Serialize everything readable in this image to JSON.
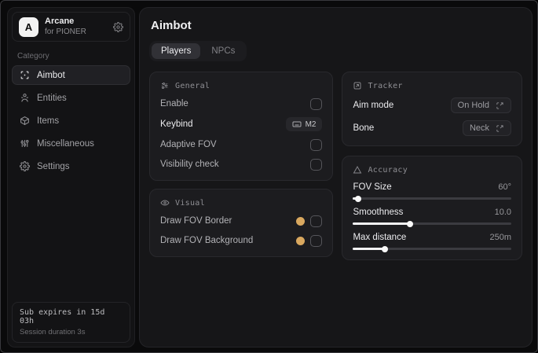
{
  "app": {
    "name": "Arcane",
    "subtitle": "for PIONER",
    "logo_letter": "A"
  },
  "colors": {
    "accent_gold": "#d9a85f",
    "panel": "#161618",
    "card": "#1c1c1f"
  },
  "sidebar": {
    "category_label": "Category",
    "items": [
      {
        "label": "Aimbot",
        "icon": "crosshair-scan-icon",
        "selected": true
      },
      {
        "label": "Entities",
        "icon": "entities-icon",
        "selected": false
      },
      {
        "label": "Items",
        "icon": "cube-icon",
        "selected": false
      },
      {
        "label": "Miscellaneous",
        "icon": "sliders-icon",
        "selected": false
      },
      {
        "label": "Settings",
        "icon": "gear-icon",
        "selected": false
      }
    ],
    "footer": {
      "sub_line": "Sub expires in 15d 03h",
      "session_line": "Session duration 3s"
    }
  },
  "main": {
    "title": "Aimbot",
    "tabs": [
      {
        "label": "Players",
        "selected": true
      },
      {
        "label": "NPCs",
        "selected": false
      }
    ],
    "cards": {
      "general": {
        "title": "General",
        "rows": [
          {
            "label": "Enable",
            "control": "checkbox",
            "checked": false
          },
          {
            "label": "Keybind",
            "control": "keybind",
            "value": "M2"
          },
          {
            "label": "Adaptive FOV",
            "control": "checkbox",
            "checked": false
          },
          {
            "label": "Visibility check",
            "control": "checkbox",
            "checked": false
          }
        ]
      },
      "visual": {
        "title": "Visual",
        "swatch_color": "#d9a85f",
        "rows": [
          {
            "label": "Draw FOV Border",
            "control": "color+checkbox",
            "checked": false
          },
          {
            "label": "Draw FOV Background",
            "control": "color+checkbox",
            "checked": false
          }
        ]
      },
      "tracker": {
        "title": "Tracker",
        "rows": [
          {
            "label": "Aim mode",
            "value": "On Hold"
          },
          {
            "label": "Bone",
            "value": "Neck"
          }
        ]
      },
      "accuracy": {
        "title": "Accuracy",
        "rows": [
          {
            "label": "FOV Size",
            "value": "60°",
            "fill_pct": 3
          },
          {
            "label": "Smoothness",
            "value": "10.0",
            "fill_pct": 36
          },
          {
            "label": "Max distance",
            "value": "250m",
            "fill_pct": 20
          }
        ]
      }
    }
  }
}
